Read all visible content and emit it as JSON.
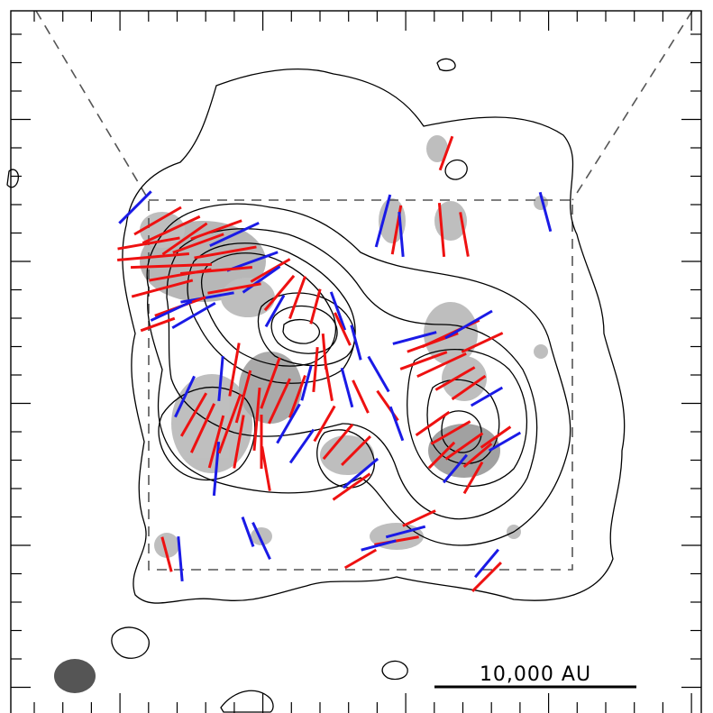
{
  "scale_bar": {
    "label": "10,000 AU"
  },
  "colors": {
    "red_vectors": "#ee1111",
    "blue_vectors": "#1a1ae6",
    "contours": "#000000",
    "field_box": "#555555",
    "beam": "#555555",
    "grayscale_emission": "#8a8a8a"
  },
  "icons": [
    "beam-ellipse",
    "scale-bar"
  ]
}
